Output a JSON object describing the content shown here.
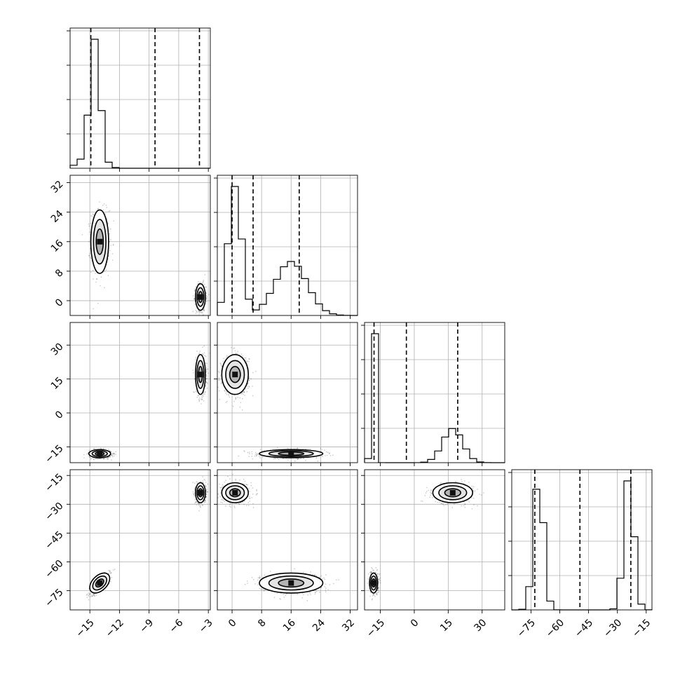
{
  "chart_data": {
    "type": "corner",
    "parameters": 4,
    "grid": true,
    "colors": {
      "line": "#000000",
      "grid": "#b0b0b0",
      "points": "#000000",
      "background": "#ffffff"
    },
    "axes": [
      {
        "range": [
          -17.0,
          -2.8
        ],
        "ticks": [
          -15,
          -12,
          -9,
          -6,
          -3
        ],
        "tick_labels": [
          "−15",
          "−12",
          "−9",
          "−6",
          "−3"
        ]
      },
      {
        "range": [
          -4.0,
          34.0
        ],
        "ticks": [
          0,
          8,
          16,
          24,
          32
        ],
        "tick_labels": [
          "0",
          "8",
          "16",
          "24",
          "32"
        ]
      },
      {
        "range": [
          -22.0,
          40.0
        ],
        "ticks": [
          -15,
          0,
          15,
          30
        ],
        "tick_labels": [
          "−15",
          "0",
          "15",
          "30"
        ]
      },
      {
        "range": [
          -85.0,
          -12.0
        ],
        "ticks": [
          -75,
          -60,
          -45,
          -30,
          -15
        ],
        "tick_labels": [
          "−75",
          "−60",
          "−45",
          "−30",
          "−15"
        ]
      }
    ],
    "quantiles": [
      [
        -14.9,
        -8.4,
        -3.9
      ],
      [
        0.0,
        5.7,
        18.2
      ],
      [
        -17.8,
        -3.5,
        19.2
      ],
      [
        -73.0,
        -49.5,
        -23.0
      ]
    ],
    "histograms": [
      {
        "edges": [
          -17.0,
          -16.29,
          -15.58,
          -14.87,
          -14.16,
          -13.45,
          -12.74,
          -12.03,
          -11.32,
          -10.61,
          -9.9,
          -9.19,
          -8.48,
          -7.77,
          -7.06,
          -6.35,
          -5.64,
          -4.93,
          -4.22,
          -3.51,
          -2.8
        ],
        "counts": [
          0.2,
          0.6,
          3.5,
          8.5,
          3.8,
          0.4,
          0.05,
          0,
          0,
          0,
          0,
          0,
          0,
          0,
          0,
          0,
          0,
          0,
          0,
          0
        ]
      }
    ],
    "samples": [
      {
        "pair": [
          0,
          1
        ],
        "clusters": [
          {
            "mean": [
              -14.0,
              16.0
            ],
            "sd": [
              0.45,
              4.3
            ],
            "rho": 0,
            "n": 700
          },
          {
            "mean": [
              -3.8,
              1.0
            ],
            "sd": [
              0.25,
              1.8
            ],
            "rho": 0,
            "n": 700
          }
        ]
      }
    ]
  }
}
